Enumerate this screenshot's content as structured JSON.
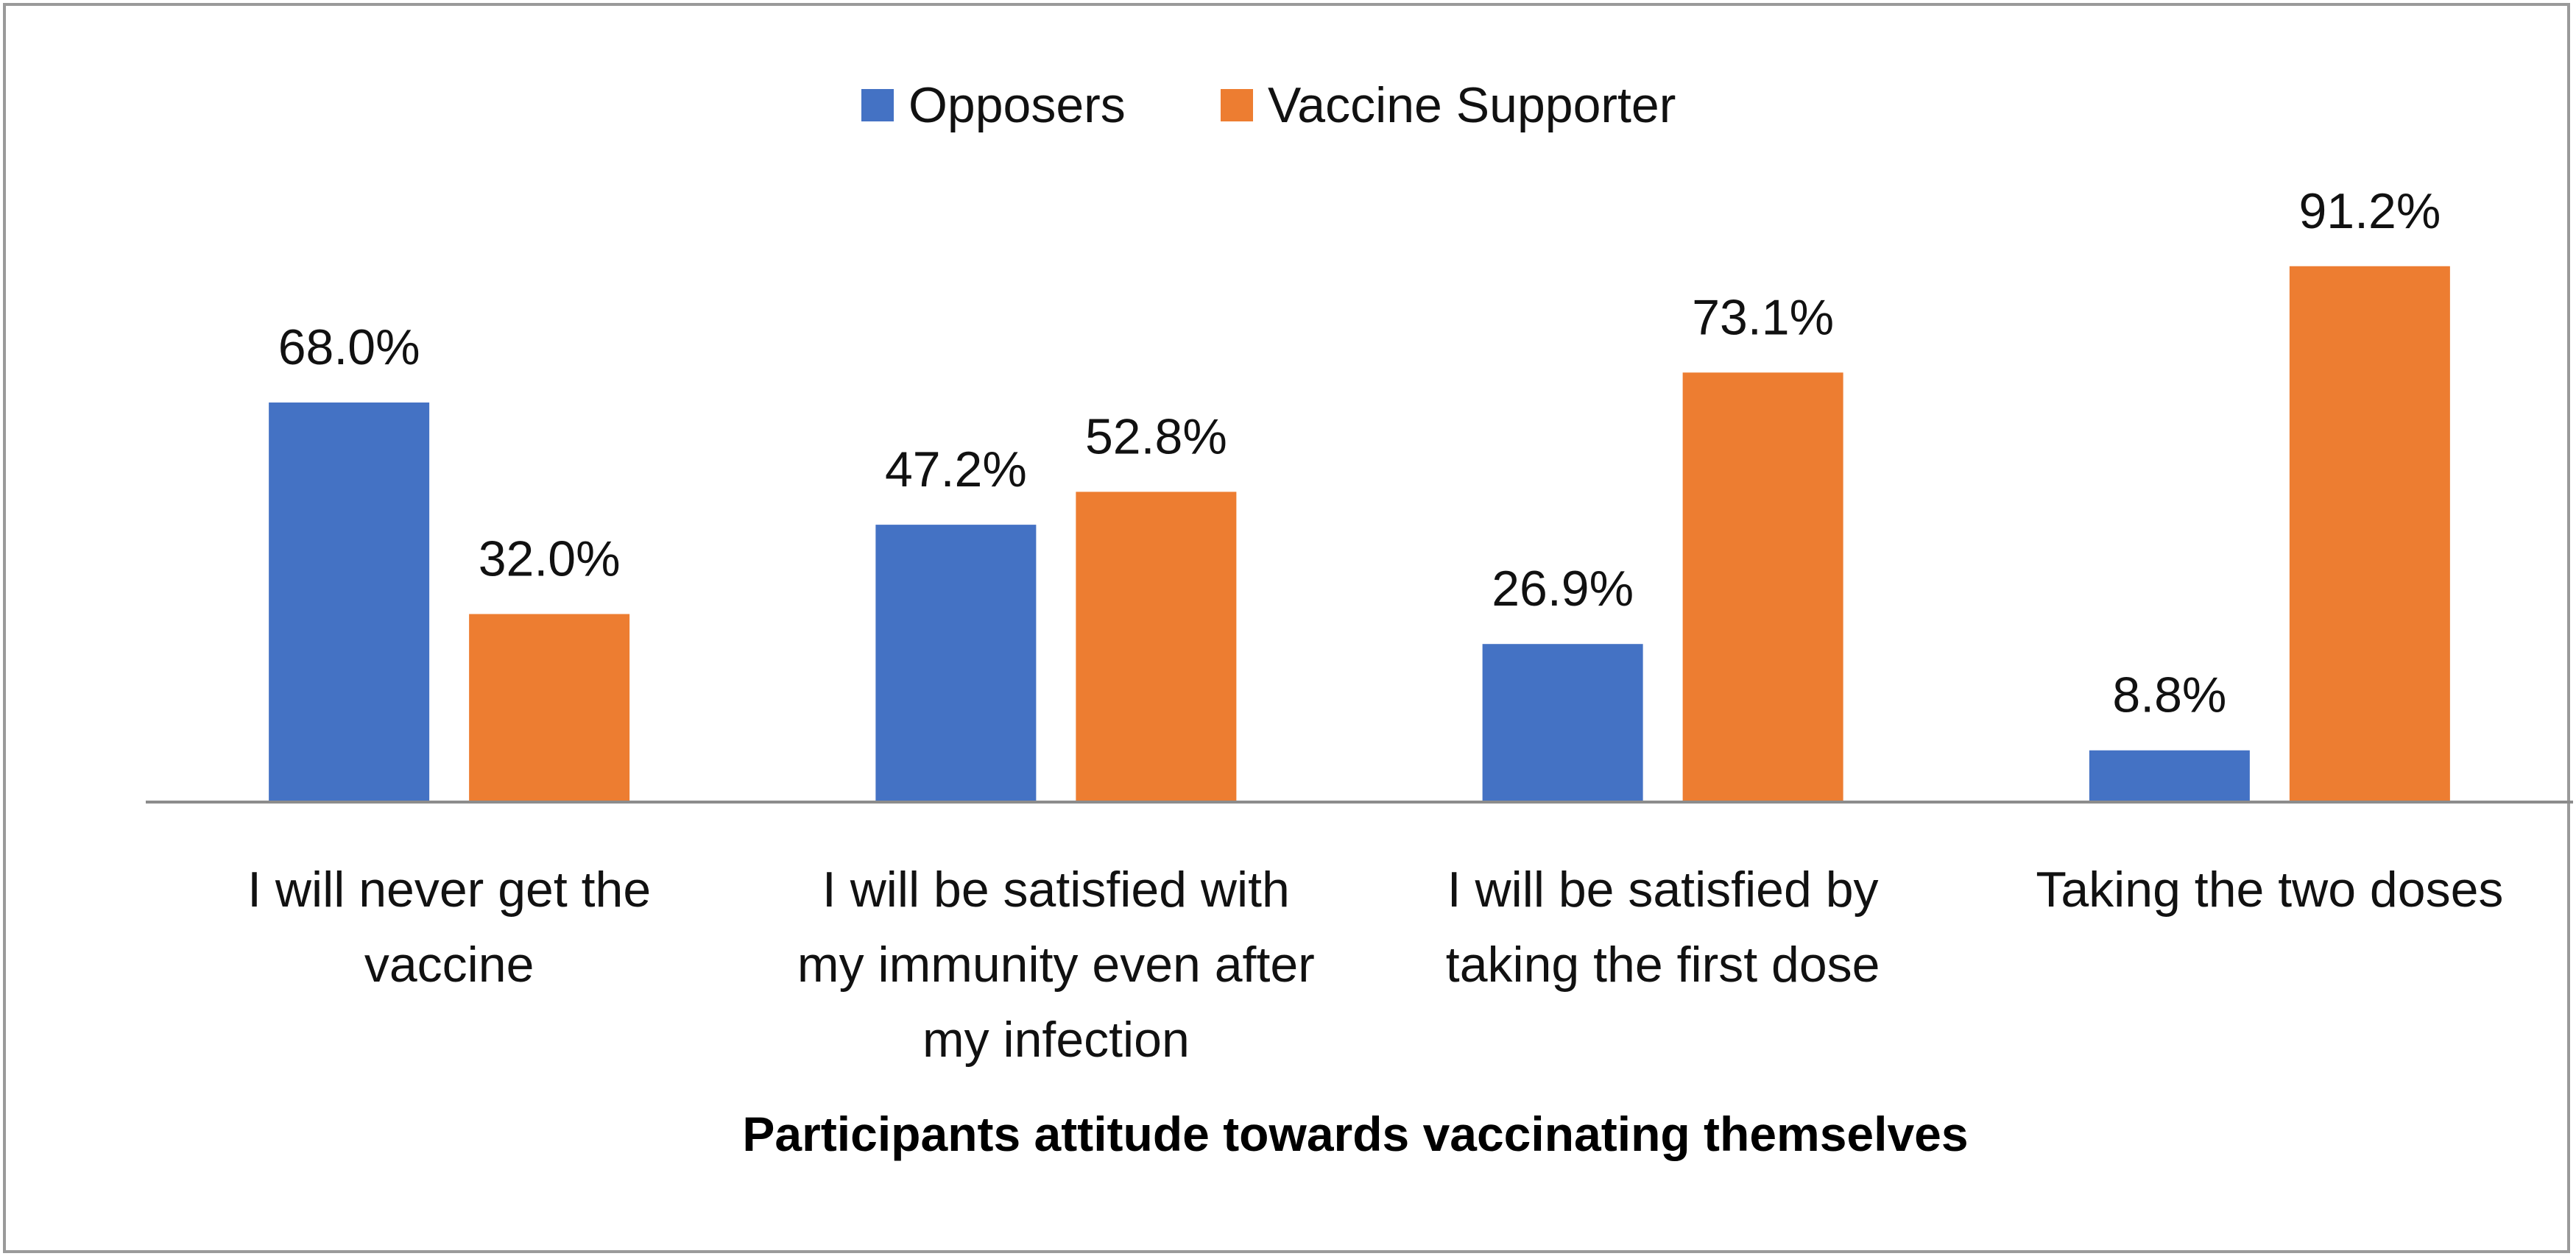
{
  "chart_data": {
    "type": "bar",
    "categories": [
      [
        "I will never get the",
        "vaccine"
      ],
      [
        "I will be satisfied with",
        "my immunity even after",
        "my infection"
      ],
      [
        "I will be satisfied by",
        "taking the first dose"
      ],
      [
        "Taking  the two doses"
      ]
    ],
    "series": [
      {
        "name": "Opposers",
        "color": "#4472C4",
        "values": [
          68.0,
          47.2,
          26.9,
          8.8
        ],
        "labels": [
          "68.0%",
          "47.2%",
          "26.9%",
          "8.8%"
        ]
      },
      {
        "name": "Vaccine Supporter",
        "color": "#ED7D31",
        "values": [
          32.0,
          52.8,
          73.1,
          91.2
        ],
        "labels": [
          "32.0%",
          "52.8%",
          "73.1%",
          "91.2%"
        ]
      }
    ],
    "title": "",
    "xlabel": "Participants attitude towards vaccinating themselves",
    "ylabel": "",
    "ylim": [
      0,
      100
    ],
    "grid": false,
    "legend": "top-center",
    "axis_color": "#8c8c8c"
  }
}
